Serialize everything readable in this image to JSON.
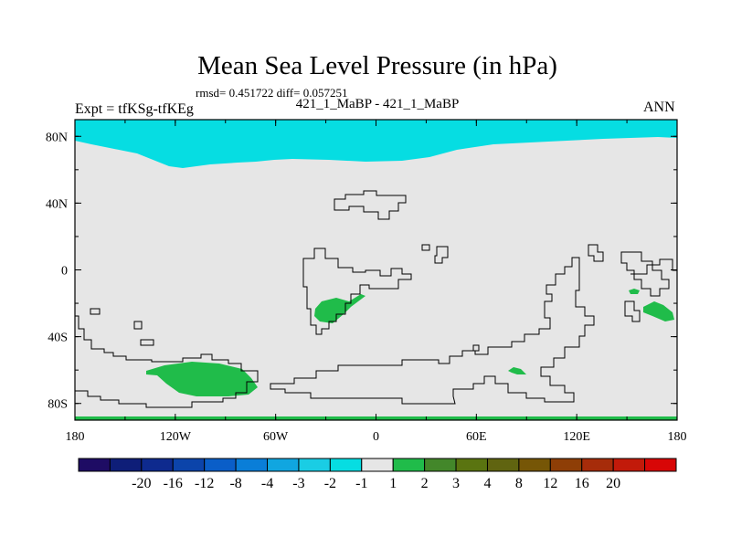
{
  "title": "Mean Sea Level Pressure (in hPa)",
  "stats": "rmsd= 0.451722 diff= 0.057251",
  "case_label": "421_1_MaBP - 421_1_MaBP",
  "expt_label": "Expt = tfKSg-tfKEg",
  "season": "ANN",
  "lat_labels": [
    "80N",
    "40N",
    "0",
    "40S",
    "80S"
  ],
  "lat_values": [
    80,
    40,
    0,
    -40,
    -80
  ],
  "lon_labels": [
    "180",
    "120W",
    "60W",
    "0",
    "60E",
    "120E",
    "180"
  ],
  "lon_values": [
    -180,
    -120,
    -60,
    0,
    60,
    120,
    180
  ],
  "colorbar": {
    "colors": [
      "#1e0c64",
      "#0e1e78",
      "#0e2a8e",
      "#0c44aa",
      "#0a5ec8",
      "#0a7ed8",
      "#10a6e0",
      "#1acde4",
      "#06dde2",
      "#e6e6e6",
      "#20bc4a",
      "#43872a",
      "#5a7410",
      "#606410",
      "#765606",
      "#8e3e06",
      "#a62c0a",
      "#c21a0a",
      "#d80606"
    ],
    "labels": [
      "-20",
      "-16",
      "-12",
      "-8",
      "-4",
      "-3",
      "-2",
      "-1",
      "1",
      "2",
      "3",
      "4",
      "8",
      "12",
      "16",
      "20"
    ],
    "colors_list_names": "blue-to-red divergent"
  },
  "colors": {
    "background_field": "#e6e6e6",
    "negative_band": "#06dde2",
    "positive_patch": "#20bc4a",
    "contour": "#000000"
  }
}
